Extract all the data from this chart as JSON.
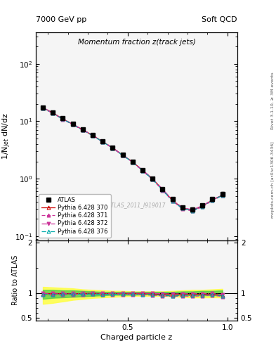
{
  "title_left": "7000 GeV pp",
  "title_right": "Soft QCD",
  "plot_title": "Momentum fraction z(track jets)",
  "ylabel_main": "1/N$_{jet}$ dN/dz",
  "ylabel_ratio": "Ratio to ATLAS",
  "xlabel": "Charged particle z",
  "right_label_top": "Rivet 3.1.10, ≥ 3M events",
  "right_label_bot": "mcplots.cern.ch [arXiv:1306.3436]",
  "watermark": "ATLAS_2011_I919017",
  "xlim": [
    0.04,
    1.05
  ],
  "ylim_main": [
    0.085,
    350
  ],
  "ylim_ratio": [
    0.45,
    2.05
  ],
  "x_data": [
    0.075,
    0.125,
    0.175,
    0.225,
    0.275,
    0.325,
    0.375,
    0.425,
    0.475,
    0.525,
    0.575,
    0.625,
    0.675,
    0.725,
    0.775,
    0.825,
    0.875,
    0.925,
    0.975
  ],
  "atlas_y": [
    17.5,
    14.2,
    11.2,
    9.0,
    7.2,
    5.75,
    4.5,
    3.5,
    2.62,
    2.0,
    1.42,
    1.02,
    0.67,
    0.44,
    0.32,
    0.295,
    0.345,
    0.44,
    0.55
  ],
  "atlas_yerr": [
    0.6,
    0.4,
    0.32,
    0.26,
    0.21,
    0.18,
    0.14,
    0.11,
    0.09,
    0.07,
    0.055,
    0.042,
    0.032,
    0.025,
    0.02,
    0.02,
    0.023,
    0.03,
    0.04
  ],
  "p370_y": [
    17.2,
    14.0,
    11.0,
    8.85,
    7.1,
    5.7,
    4.42,
    3.45,
    2.58,
    1.97,
    1.4,
    1.0,
    0.65,
    0.42,
    0.31,
    0.285,
    0.335,
    0.43,
    0.52
  ],
  "p371_y": [
    16.8,
    13.7,
    10.8,
    8.7,
    6.98,
    5.6,
    4.35,
    3.4,
    2.54,
    1.94,
    1.37,
    0.97,
    0.63,
    0.41,
    0.3,
    0.275,
    0.325,
    0.42,
    0.51
  ],
  "p372_y": [
    17.3,
    14.1,
    11.1,
    8.9,
    7.15,
    5.73,
    4.45,
    3.47,
    2.6,
    1.99,
    1.41,
    1.01,
    0.66,
    0.43,
    0.315,
    0.29,
    0.34,
    0.435,
    0.53
  ],
  "p376_y": [
    16.9,
    13.8,
    10.9,
    8.78,
    7.02,
    5.63,
    4.37,
    3.41,
    2.55,
    1.95,
    1.38,
    0.98,
    0.64,
    0.41,
    0.305,
    0.28,
    0.33,
    0.425,
    0.515
  ],
  "ratio_band_yellow_lo": [
    0.78,
    0.8,
    0.83,
    0.86,
    0.88,
    0.9,
    0.91,
    0.92,
    0.93,
    0.94,
    0.94,
    0.94,
    0.94,
    0.93,
    0.92,
    0.91,
    0.91,
    0.91,
    0.91
  ],
  "ratio_band_yellow_hi": [
    1.12,
    1.11,
    1.1,
    1.09,
    1.07,
    1.06,
    1.05,
    1.04,
    1.04,
    1.03,
    1.03,
    1.03,
    1.03,
    1.04,
    1.05,
    1.06,
    1.06,
    1.07,
    1.08
  ],
  "ratio_band_green_lo": [
    0.88,
    0.9,
    0.91,
    0.92,
    0.93,
    0.94,
    0.95,
    0.96,
    0.96,
    0.96,
    0.97,
    0.97,
    0.97,
    0.96,
    0.96,
    0.95,
    0.95,
    0.95,
    0.95
  ],
  "ratio_band_green_hi": [
    1.06,
    1.06,
    1.05,
    1.05,
    1.04,
    1.03,
    1.02,
    1.02,
    1.02,
    1.02,
    1.02,
    1.02,
    1.02,
    1.02,
    1.03,
    1.03,
    1.04,
    1.04,
    1.05
  ],
  "color_atlas": "#000000",
  "color_370": "#cc0000",
  "color_371": "#cc3399",
  "color_372": "#cc3399",
  "color_376": "#00aaaa",
  "bg_color": "#ffffff"
}
